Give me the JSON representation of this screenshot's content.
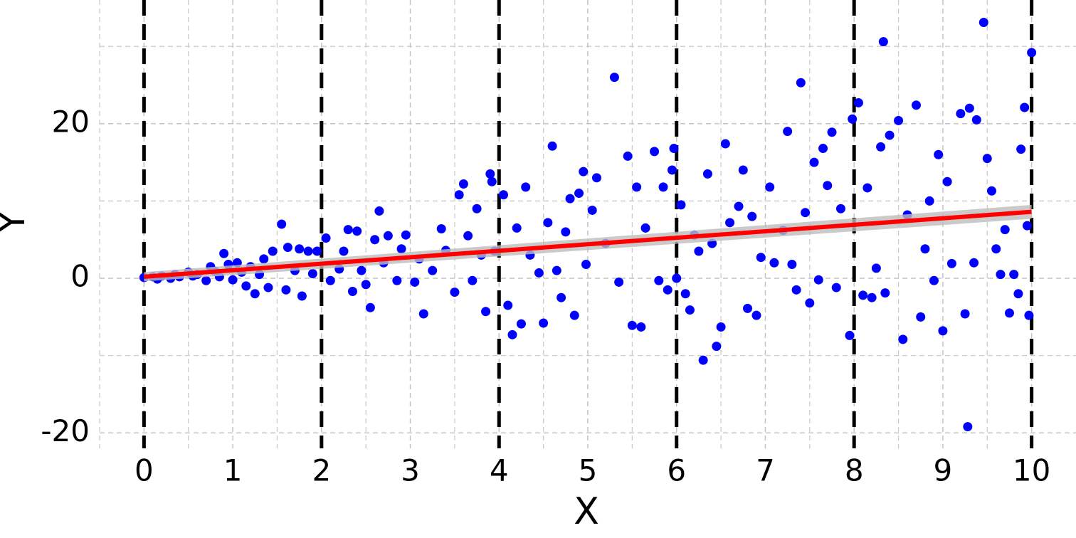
{
  "chart_data": {
    "type": "scatter",
    "x_label": "X",
    "y_label": "Y",
    "xlim": [
      -0.5,
      10.5
    ],
    "ylim": [
      -22,
      36
    ],
    "xticks": [
      0,
      1,
      2,
      3,
      4,
      5,
      6,
      7,
      8,
      9,
      10
    ],
    "yticks": [
      -20,
      0,
      20
    ],
    "x_minor_grid": [
      -0.5,
      0.5,
      1.5,
      2.5,
      3.5,
      4.5,
      5.5,
      6.5,
      7.5,
      8.5,
      9.5
    ],
    "y_minor_grid": [
      -10,
      10,
      30
    ],
    "grid": true,
    "vlines": {
      "values": [
        0,
        2,
        4,
        6,
        8,
        10
      ],
      "color": "#000000"
    },
    "series": [
      {
        "color": "#0000ff",
        "x": [
          0.0,
          0.1,
          0.15,
          0.2,
          0.3,
          0.35,
          0.4,
          0.5,
          0.55,
          0.6,
          0.7,
          0.75,
          0.8,
          0.85,
          0.9,
          0.95,
          1.0,
          1.05,
          1.1,
          1.15,
          1.2,
          1.25,
          1.3,
          1.35,
          1.4,
          1.45,
          1.55,
          1.6,
          1.62,
          1.7,
          1.75,
          1.78,
          1.85,
          1.9,
          1.95,
          2.05,
          2.1,
          2.2,
          2.25,
          2.3,
          2.35,
          2.4,
          2.45,
          2.5,
          2.55,
          2.6,
          2.65,
          2.7,
          2.75,
          2.85,
          2.9,
          2.95,
          3.05,
          3.1,
          3.15,
          3.25,
          3.35,
          3.4,
          3.5,
          3.55,
          3.6,
          3.65,
          3.7,
          3.75,
          3.8,
          3.85,
          3.9,
          3.92,
          3.95,
          4.05,
          4.1,
          4.15,
          4.2,
          4.25,
          4.3,
          4.35,
          4.45,
          4.5,
          4.55,
          4.6,
          4.65,
          4.7,
          4.75,
          4.8,
          4.85,
          4.9,
          4.95,
          4.98,
          5.05,
          5.1,
          5.2,
          5.3,
          5.35,
          5.45,
          5.5,
          5.55,
          5.6,
          5.65,
          5.75,
          5.8,
          5.85,
          5.9,
          5.95,
          5.97,
          6.0,
          6.05,
          6.1,
          6.15,
          6.2,
          6.25,
          6.3,
          6.35,
          6.4,
          6.45,
          6.5,
          6.55,
          6.6,
          6.7,
          6.75,
          6.8,
          6.85,
          6.9,
          6.95,
          7.05,
          7.1,
          7.2,
          7.25,
          7.3,
          7.35,
          7.4,
          7.45,
          7.5,
          7.55,
          7.6,
          7.65,
          7.7,
          7.75,
          7.8,
          7.85,
          7.95,
          7.98,
          8.05,
          8.1,
          8.15,
          8.2,
          8.25,
          8.3,
          8.33,
          8.35,
          8.4,
          8.5,
          8.55,
          8.6,
          8.7,
          8.75,
          8.8,
          8.85,
          8.9,
          8.95,
          9.0,
          9.05,
          9.1,
          9.2,
          9.25,
          9.28,
          9.3,
          9.35,
          9.38,
          9.46,
          9.5,
          9.55,
          9.6,
          9.65,
          9.7,
          9.75,
          9.8,
          9.85,
          9.88,
          9.92,
          9.95,
          10.0,
          9.97
        ],
        "y": [
          0.1,
          0.2,
          -0.1,
          0.3,
          0.0,
          0.5,
          0.2,
          0.8,
          0.3,
          0.5,
          -0.3,
          1.5,
          0.9,
          0.2,
          3.2,
          1.8,
          -0.2,
          2.0,
          0.8,
          -1.0,
          1.5,
          -2.0,
          0.5,
          2.5,
          -1.2,
          3.5,
          7.0,
          -1.5,
          4.0,
          1.0,
          3.8,
          -2.3,
          3.5,
          0.6,
          3.5,
          5.2,
          -0.3,
          1.2,
          3.5,
          6.3,
          -1.7,
          6.1,
          1.0,
          -0.8,
          -3.8,
          5.0,
          8.7,
          2.0,
          5.5,
          -0.3,
          3.8,
          5.6,
          -0.5,
          2.5,
          -4.6,
          1.0,
          6.4,
          3.6,
          -1.8,
          10.8,
          12.2,
          5.5,
          -0.3,
          9.0,
          3.0,
          -4.3,
          13.5,
          12.5,
          3.5,
          10.8,
          -3.5,
          -7.3,
          6.5,
          -5.9,
          11.8,
          3.0,
          0.7,
          -5.8,
          7.2,
          17.1,
          1.0,
          -2.5,
          6.0,
          10.3,
          -4.8,
          11.0,
          13.8,
          1.8,
          8.8,
          13.0,
          4.5,
          26.0,
          -0.5,
          15.8,
          -6.1,
          11.8,
          -6.3,
          6.5,
          16.4,
          -0.3,
          11.8,
          -1.5,
          14.0,
          16.8,
          0.0,
          9.5,
          -2.0,
          -4.1,
          5.6,
          3.5,
          -10.6,
          13.5,
          4.5,
          -8.8,
          -6.3,
          17.4,
          7.2,
          9.3,
          14.0,
          -3.9,
          8.0,
          -4.8,
          2.7,
          11.8,
          2.0,
          6.2,
          19.0,
          1.8,
          -1.5,
          25.3,
          8.5,
          -3.2,
          15.0,
          -0.2,
          16.8,
          12.0,
          18.9,
          -1.2,
          9.0,
          -7.4,
          20.6,
          22.7,
          -2.2,
          11.7,
          -2.5,
          1.3,
          17.0,
          30.6,
          -1.9,
          18.5,
          20.4,
          -7.9,
          8.2,
          22.4,
          -5.0,
          3.8,
          10.0,
          -0.3,
          16.0,
          -6.8,
          12.5,
          1.9,
          21.3,
          -4.6,
          -19.2,
          22.0,
          2.0,
          20.5,
          33.1,
          15.5,
          11.3,
          3.8,
          0.5,
          6.3,
          -4.5,
          0.5,
          -2.0,
          16.7,
          22.1,
          6.8,
          29.2,
          -4.8
        ]
      }
    ],
    "fit": {
      "color": "#ff0000",
      "band_color": "#bdbdbd",
      "x": [
        0,
        10
      ],
      "y": [
        0.2,
        8.6
      ],
      "lower": [
        -0.4,
        7.7
      ],
      "upper": [
        0.8,
        9.5
      ]
    }
  }
}
